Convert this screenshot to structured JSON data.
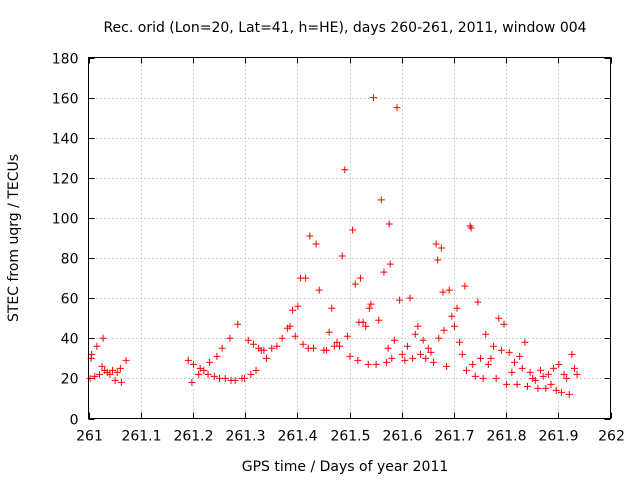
{
  "chart_data": {
    "type": "scatter",
    "title": "Rec. orid (Lon=20, Lat=41, h=HE), days 260-261, 2011, window 004",
    "xlabel": "GPS time / Days of year 2011",
    "ylabel": "STEC from uqrg / TECUs",
    "xlim": [
      261,
      262
    ],
    "ylim": [
      0,
      180
    ],
    "xticks": [
      "261",
      "261.1",
      "261.2",
      "261.3",
      "261.4",
      "261.5",
      "261.6",
      "261.7",
      "261.8",
      "261.9",
      "262"
    ],
    "yticks": [
      "0",
      "20",
      "40",
      "60",
      "80",
      "100",
      "120",
      "140",
      "160",
      "180"
    ],
    "grid": true,
    "marker": "plus",
    "color": "#ff0000",
    "points": [
      [
        261.003,
        20
      ],
      [
        261.005,
        30
      ],
      [
        261.006,
        32
      ],
      [
        261.012,
        21
      ],
      [
        261.016,
        36
      ],
      [
        261.021,
        22
      ],
      [
        261.026,
        26
      ],
      [
        261.028,
        40
      ],
      [
        261.031,
        24
      ],
      [
        261.036,
        23
      ],
      [
        261.041,
        22
      ],
      [
        261.046,
        24
      ],
      [
        261.051,
        19
      ],
      [
        261.055,
        23
      ],
      [
        261.061,
        25
      ],
      [
        261.063,
        18
      ],
      [
        261.072,
        29
      ],
      [
        261.191,
        29
      ],
      [
        261.198,
        18
      ],
      [
        261.201,
        27
      ],
      [
        261.211,
        22
      ],
      [
        261.214,
        25
      ],
      [
        261.221,
        24
      ],
      [
        261.229,
        22
      ],
      [
        261.232,
        28
      ],
      [
        261.241,
        21
      ],
      [
        261.246,
        31
      ],
      [
        261.251,
        20
      ],
      [
        261.256,
        35
      ],
      [
        261.262,
        20
      ],
      [
        261.271,
        40
      ],
      [
        261.273,
        19
      ],
      [
        261.281,
        19
      ],
      [
        261.286,
        47
      ],
      [
        261.294,
        20
      ],
      [
        261.299,
        20
      ],
      [
        261.306,
        39
      ],
      [
        261.311,
        22
      ],
      [
        261.316,
        37
      ],
      [
        261.321,
        24
      ],
      [
        261.326,
        35
      ],
      [
        261.331,
        34
      ],
      [
        261.336,
        34
      ],
      [
        261.341,
        30
      ],
      [
        261.351,
        35
      ],
      [
        261.361,
        36
      ],
      [
        261.371,
        40
      ],
      [
        261.381,
        45
      ],
      [
        261.386,
        46
      ],
      [
        261.391,
        54
      ],
      [
        261.396,
        41
      ],
      [
        261.401,
        56
      ],
      [
        261.406,
        70
      ],
      [
        261.411,
        37
      ],
      [
        261.416,
        70
      ],
      [
        261.421,
        35
      ],
      [
        261.424,
        91
      ],
      [
        261.431,
        35
      ],
      [
        261.436,
        87
      ],
      [
        261.442,
        64
      ],
      [
        261.451,
        34
      ],
      [
        261.456,
        34
      ],
      [
        261.461,
        43
      ],
      [
        261.466,
        55
      ],
      [
        261.471,
        36
      ],
      [
        261.476,
        38
      ],
      [
        261.481,
        36
      ],
      [
        261.491,
        124
      ],
      [
        261.486,
        81
      ],
      [
        261.496,
        41
      ],
      [
        261.501,
        31
      ],
      [
        261.506,
        94
      ],
      [
        261.511,
        67
      ],
      [
        261.516,
        29
      ],
      [
        261.518,
        48
      ],
      [
        261.521,
        70
      ],
      [
        261.526,
        48
      ],
      [
        261.531,
        46
      ],
      [
        261.536,
        27
      ],
      [
        261.538,
        55
      ],
      [
        261.541,
        57
      ],
      [
        261.546,
        160
      ],
      [
        261.551,
        27
      ],
      [
        261.556,
        49
      ],
      [
        261.561,
        109
      ],
      [
        261.566,
        73
      ],
      [
        261.571,
        28
      ],
      [
        261.574,
        35
      ],
      [
        261.576,
        97
      ],
      [
        261.578,
        77
      ],
      [
        261.581,
        30
      ],
      [
        261.586,
        39
      ],
      [
        261.591,
        155
      ],
      [
        261.596,
        59
      ],
      [
        261.601,
        32
      ],
      [
        261.606,
        29
      ],
      [
        261.611,
        36
      ],
      [
        261.616,
        60
      ],
      [
        261.621,
        30
      ],
      [
        261.626,
        42
      ],
      [
        261.631,
        46
      ],
      [
        261.636,
        32
      ],
      [
        261.641,
        39
      ],
      [
        261.646,
        30
      ],
      [
        261.651,
        35
      ],
      [
        261.656,
        33
      ],
      [
        261.661,
        28
      ],
      [
        261.666,
        87
      ],
      [
        261.669,
        79
      ],
      [
        261.671,
        40
      ],
      [
        261.676,
        85
      ],
      [
        261.679,
        63
      ],
      [
        261.681,
        44
      ],
      [
        261.686,
        26
      ],
      [
        261.691,
        64
      ],
      [
        261.696,
        51
      ],
      [
        261.701,
        46
      ],
      [
        261.706,
        55
      ],
      [
        261.711,
        38
      ],
      [
        261.716,
        32
      ],
      [
        261.721,
        66
      ],
      [
        261.724,
        24
      ],
      [
        261.731,
        96
      ],
      [
        261.733,
        95
      ],
      [
        261.736,
        27
      ],
      [
        261.741,
        21
      ],
      [
        261.746,
        58
      ],
      [
        261.751,
        30
      ],
      [
        261.756,
        20
      ],
      [
        261.761,
        42
      ],
      [
        261.766,
        27
      ],
      [
        261.771,
        30
      ],
      [
        261.776,
        36
      ],
      [
        261.781,
        20
      ],
      [
        261.786,
        50
      ],
      [
        261.791,
        34
      ],
      [
        261.796,
        47
      ],
      [
        261.801,
        17
      ],
      [
        261.806,
        33
      ],
      [
        261.811,
        23
      ],
      [
        261.816,
        28
      ],
      [
        261.821,
        17
      ],
      [
        261.826,
        31
      ],
      [
        261.831,
        25
      ],
      [
        261.836,
        38
      ],
      [
        261.841,
        16
      ],
      [
        261.846,
        23
      ],
      [
        261.851,
        20
      ],
      [
        261.856,
        19
      ],
      [
        261.861,
        15
      ],
      [
        261.866,
        24
      ],
      [
        261.871,
        21
      ],
      [
        261.876,
        15
      ],
      [
        261.881,
        22
      ],
      [
        261.886,
        17
      ],
      [
        261.891,
        25
      ],
      [
        261.896,
        14
      ],
      [
        261.901,
        27
      ],
      [
        261.906,
        13
      ],
      [
        261.911,
        22
      ],
      [
        261.916,
        20
      ],
      [
        261.921,
        12
      ],
      [
        261.926,
        32
      ],
      [
        261.931,
        25
      ],
      [
        261.936,
        22
      ]
    ]
  }
}
